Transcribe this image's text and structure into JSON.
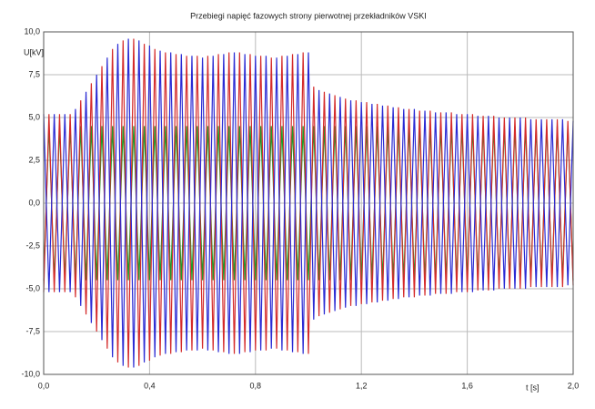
{
  "chart_data": {
    "type": "line",
    "title": "Przebiegi napięć fazowych strony pierwotnej przekładników VSKI",
    "y_label": "U[kV]",
    "x_label": "t [s]",
    "x": [
      0,
      0.02,
      0.04,
      0.06,
      0.08,
      0.1,
      0.12,
      0.14,
      0.16,
      0.18,
      0.2,
      0.22,
      0.24,
      0.26,
      0.28,
      0.3,
      0.32,
      0.34,
      0.36,
      0.38,
      0.4,
      0.42,
      0.44,
      0.46,
      0.48,
      0.5,
      0.52,
      0.54,
      0.56,
      0.58,
      0.6,
      0.62,
      0.64,
      0.66,
      0.68,
      0.7,
      0.72,
      0.74,
      0.76,
      0.78,
      0.8,
      0.82,
      0.84,
      0.86,
      0.88,
      0.9,
      0.92,
      0.94,
      0.96,
      0.98,
      1.0,
      1.02,
      1.04,
      1.06,
      1.08,
      1.1,
      1.12,
      1.14,
      1.16,
      1.18,
      1.2,
      1.22,
      1.24,
      1.26,
      1.28,
      1.3,
      1.32,
      1.34,
      1.36,
      1.38,
      1.4,
      1.42,
      1.44,
      1.46,
      1.48,
      1.5,
      1.52,
      1.54,
      1.56,
      1.58,
      1.6,
      1.62,
      1.64,
      1.66,
      1.68,
      1.7,
      1.72,
      1.74,
      1.76,
      1.78,
      1.8,
      1.82,
      1.84,
      1.86,
      1.88,
      1.9,
      1.92,
      1.94,
      1.96,
      1.98,
      2.0
    ],
    "series": [
      {
        "color": "#1f9a2a",
        "values": [
          -4.5,
          4.5,
          -4.5,
          4.5,
          -4.5,
          4.5,
          -4.5,
          4.5,
          -4.5,
          4.5,
          -4.5,
          4.5,
          -4.5,
          4.5,
          -4.5,
          4.5,
          -4.5,
          4.5,
          -4.5,
          4.5,
          -4.5,
          4.5,
          -4.5,
          4.5,
          -4.5,
          4.5,
          -4.5,
          4.5,
          -4.5,
          4.5,
          -4.5,
          4.5,
          -4.5,
          4.5,
          -4.5,
          4.5,
          -4.5,
          4.5,
          -4.5,
          4.5,
          -4.5,
          4.5,
          -4.5,
          4.5,
          -4.5,
          4.5,
          -4.5,
          4.5,
          -4.5,
          4.5,
          -4.5,
          4.5,
          -4.5,
          4.5,
          -4.5,
          4.5,
          -4.5,
          4.5,
          -4.5,
          4.5,
          -4.5,
          4.5,
          -4.5,
          4.5,
          -4.5,
          4.5,
          -4.5,
          4.5,
          -4.5,
          4.5,
          -4.5,
          4.5,
          -4.5,
          4.5,
          -4.5,
          4.5,
          -4.5,
          4.5,
          -4.5,
          4.5,
          -4.5,
          4.5,
          -4.5,
          4.5,
          -4.5,
          4.5,
          -4.5,
          4.5,
          -4.5,
          4.5,
          -4.5,
          4.5,
          -4.5,
          4.5,
          -4.5,
          4.5,
          -4.5,
          4.5,
          -4.5,
          4.5,
          -4.5
        ]
      },
      {
        "color": "#d42a2a",
        "values": [
          -5.2,
          5.2,
          -5.2,
          5.2,
          -5.2,
          5.2,
          -5.5,
          6,
          -6.5,
          7,
          -7.5,
          8,
          -8.5,
          9,
          -9.3,
          9.5,
          -9.6,
          9.6,
          -9.5,
          9.3,
          -9.2,
          9.0,
          -8.9,
          8.8,
          -8.8,
          8.7,
          -8.7,
          8.6,
          -8.6,
          8.6,
          -8.5,
          8.6,
          -8.6,
          8.7,
          -8.7,
          8.8,
          -8.8,
          8.8,
          -8.7,
          8.7,
          -8.6,
          8.6,
          -8.6,
          8.5,
          -8.5,
          8.6,
          -8.6,
          8.7,
          -8.7,
          8.8,
          -8.8,
          6.8,
          -6.6,
          6.5,
          -6.4,
          6.3,
          -6.2,
          6.1,
          -6.0,
          6.0,
          -5.9,
          5.9,
          -5.8,
          5.8,
          -5.7,
          5.7,
          -5.6,
          5.6,
          -5.5,
          5.5,
          -5.5,
          5.4,
          -5.4,
          5.4,
          -5.3,
          5.3,
          -5.3,
          5.3,
          -5.2,
          5.2,
          -5.2,
          5.2,
          -5.1,
          5.1,
          -5.1,
          5.1,
          -5.0,
          5.0,
          -5.0,
          5.0,
          -5.0,
          5.0,
          -4.9,
          4.9,
          -4.9,
          4.9,
          -4.9,
          4.9,
          -4.9,
          4.8,
          -4.8
        ]
      },
      {
        "color": "#2a2ad4",
        "values": [
          5.2,
          -5.2,
          5.2,
          -5.2,
          5.2,
          -5.2,
          5.5,
          -6,
          6.5,
          -7,
          7.5,
          -8,
          8.5,
          -9,
          9.3,
          -9.5,
          9.6,
          -9.6,
          9.5,
          -9.3,
          9.2,
          -9.0,
          8.9,
          -8.8,
          8.8,
          -8.7,
          8.7,
          -8.6,
          8.6,
          -8.6,
          8.5,
          -8.6,
          8.6,
          -8.7,
          8.7,
          -8.8,
          8.8,
          -8.8,
          8.7,
          -8.7,
          8.6,
          -8.6,
          8.6,
          -8.5,
          8.5,
          -8.6,
          8.6,
          -8.7,
          8.7,
          -8.8,
          8.8,
          -6.8,
          6.6,
          -6.5,
          6.4,
          -6.3,
          6.2,
          -6.1,
          6.0,
          -6.0,
          5.9,
          -5.9,
          5.8,
          -5.8,
          5.7,
          -5.7,
          5.6,
          -5.6,
          5.5,
          -5.5,
          5.5,
          -5.4,
          5.4,
          -5.4,
          5.3,
          -5.3,
          5.3,
          -5.3,
          5.2,
          -5.2,
          5.2,
          -5.2,
          5.1,
          -5.1,
          5.1,
          -5.1,
          5.0,
          -5.0,
          5.0,
          -5.0,
          5.0,
          -5.0,
          4.9,
          -4.9,
          4.9,
          -4.9,
          4.9,
          -4.9,
          4.9,
          -4.8,
          4.8
        ]
      }
    ],
    "xlim": [
      0,
      2.0
    ],
    "ylim": [
      -10,
      10
    ],
    "xticks": [
      {
        "value": 0,
        "label": "0,0"
      },
      {
        "value": 0.4,
        "label": "0,4"
      },
      {
        "value": 0.8,
        "label": "0,8"
      },
      {
        "value": 1.2,
        "label": "1,2"
      },
      {
        "value": 1.6,
        "label": "1,6"
      },
      {
        "value": 2.0,
        "label": "2,0"
      }
    ],
    "yticks": [
      {
        "value": -10,
        "label": "-10,0"
      },
      {
        "value": -7.5,
        "label": "-7,5"
      },
      {
        "value": -5,
        "label": "-5,0"
      },
      {
        "value": -2.5,
        "label": "-2,5"
      },
      {
        "value": 0,
        "label": "0,0"
      },
      {
        "value": 2.5,
        "label": "2,5"
      },
      {
        "value": 5,
        "label": "5,0"
      },
      {
        "value": 7.5,
        "label": "7,5"
      },
      {
        "value": 10,
        "label": "10,0"
      }
    ],
    "grid": true
  }
}
